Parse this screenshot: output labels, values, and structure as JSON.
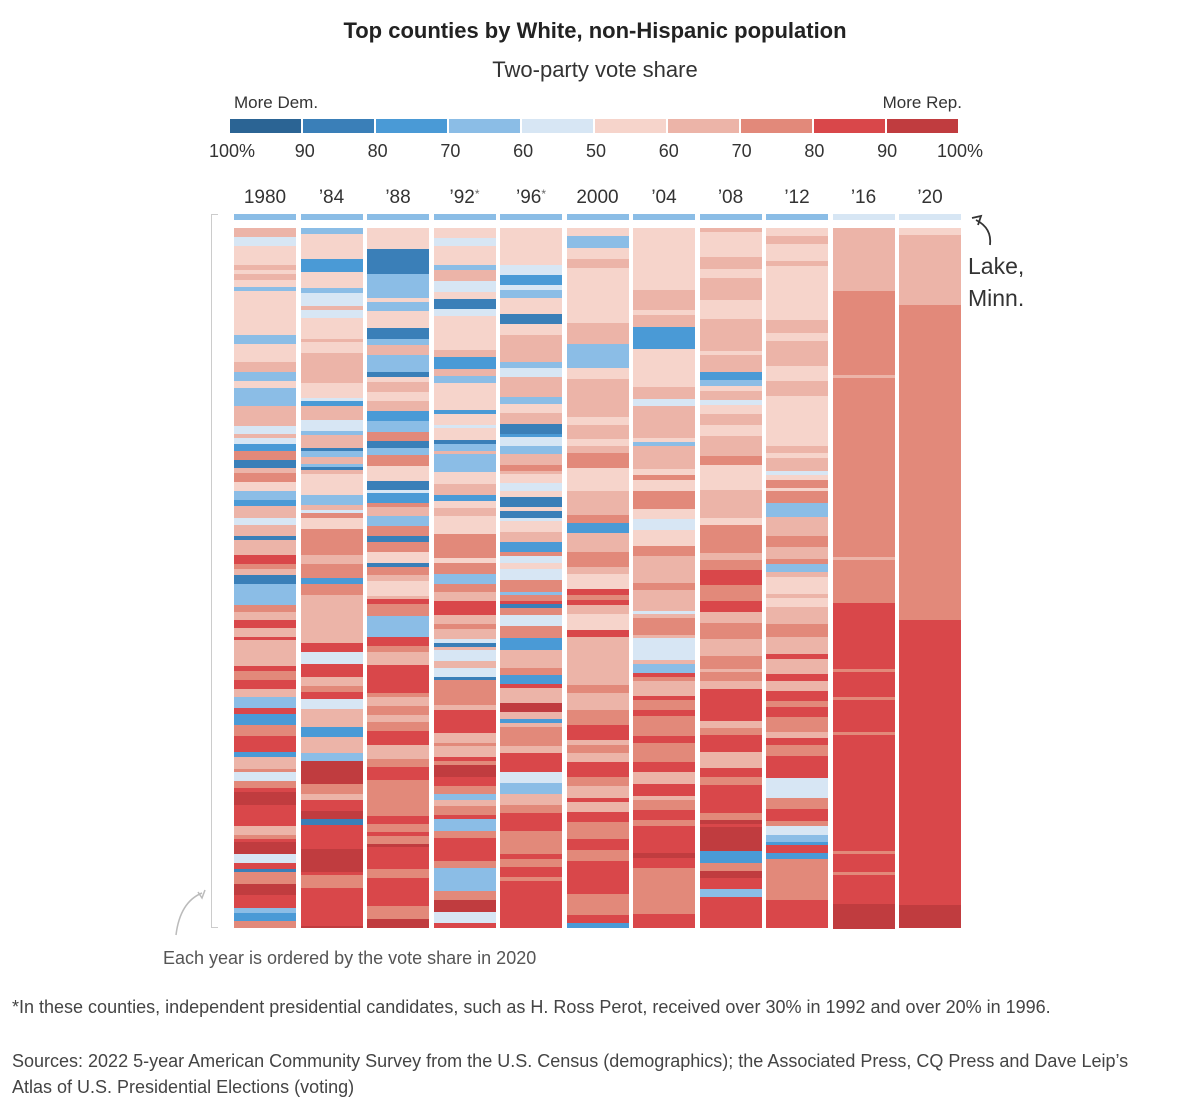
{
  "chart_data": {
    "type": "heatmap",
    "title": "Top counties by White, non-Hispanic population",
    "subtitle": "Two-party vote share",
    "legend": {
      "left_label": "More Dem.",
      "right_label": "More Rep.",
      "tick_labels": [
        "100%",
        "90",
        "80",
        "70",
        "60",
        "50",
        "60",
        "70",
        "80",
        "90",
        "100%"
      ],
      "colors": [
        "#2b6494",
        "#3a7fb8",
        "#4a9ad6",
        "#8bbde6",
        "#d7e6f4",
        "#f6d4cb",
        "#ecb4a8",
        "#e2897a",
        "#d9474a",
        "#c03c3f"
      ]
    },
    "columns": [
      {
        "label": "1980",
        "starred": false
      },
      {
        "label": "’84",
        "starred": false
      },
      {
        "label": "’88",
        "starred": false
      },
      {
        "label": "’92",
        "starred": true
      },
      {
        "label": "’96",
        "starred": true
      },
      {
        "label": "2000",
        "starred": false
      },
      {
        "label": "’04",
        "starred": false
      },
      {
        "label": "’08",
        "starred": false
      },
      {
        "label": "’12",
        "starred": false
      },
      {
        "label": "’16",
        "starred": false
      },
      {
        "label": "’20",
        "starred": false
      }
    ],
    "top_row": {
      "name": "Lake, Minn.",
      "values": [
        "D60",
        "D60",
        "D60",
        "D60",
        "D60",
        "D60",
        "D60",
        "D60",
        "D60",
        "D50",
        "D50"
      ]
    },
    "annotation": "Lake, Minn.",
    "ordering_note": "Each year is ordered by the vote share in 2020",
    "column_2020_bands": [
      {
        "from": 0.0,
        "to": 0.01,
        "bin": "R50"
      },
      {
        "from": 0.01,
        "to": 0.11,
        "bin": "R60"
      },
      {
        "from": 0.11,
        "to": 0.56,
        "bin": "R70"
      },
      {
        "from": 0.56,
        "to": 0.967,
        "bin": "R80"
      },
      {
        "from": 0.967,
        "to": 1.0,
        "bin": "R90"
      }
    ],
    "column_2016_bands": [
      {
        "from": 0.0,
        "to": 0.015,
        "bin": "R60"
      },
      {
        "from": 0.015,
        "to": 0.09,
        "bin": "R60"
      },
      {
        "from": 0.09,
        "to": 0.16,
        "bin": "R70"
      },
      {
        "from": 0.16,
        "to": 0.535,
        "bin": "R70"
      },
      {
        "from": 0.535,
        "to": 0.965,
        "bin": "R80"
      },
      {
        "from": 0.965,
        "to": 1.0,
        "bin": "R90"
      }
    ]
  },
  "footnotes": {
    "star_note": "*In these counties, independent presidential candidates, such as H. Ross Perot, received over 30% in 1992 and over 20% in 1996.",
    "sources": "Sources: 2022 5-year American Community Survey from the U.S. Census (demographics); the Associated Press, CQ Press and Dave Leip’s Atlas of U.S. Presidential Elections (voting)"
  }
}
